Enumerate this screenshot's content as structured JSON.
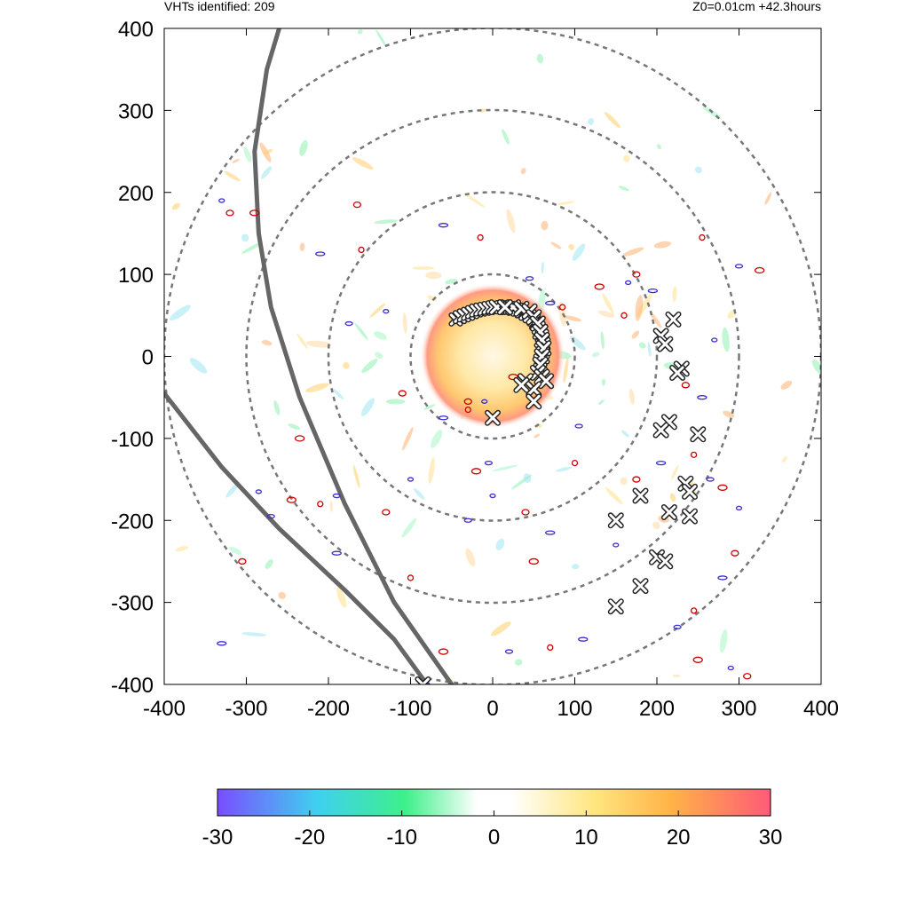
{
  "header": {
    "left": "VHTs identified: 209",
    "right": "Z0=0.01cm  +42.3hours"
  },
  "colors": {
    "ring": "#777777",
    "track": "#666666",
    "contour_pos": "#cc0000",
    "contour_neg": "#3a2fd0",
    "marker_fill": "#ffffff",
    "marker_edge": "#222222"
  },
  "chart_data": {
    "type": "scatter",
    "title": "",
    "xlabel": "",
    "ylabel": "",
    "xlim": [
      -400,
      400
    ],
    "ylim": [
      -400,
      400
    ],
    "xticks": [
      -400,
      -300,
      -200,
      -100,
      0,
      100,
      200,
      300,
      400
    ],
    "yticks": [
      -400,
      -300,
      -200,
      -100,
      0,
      100,
      200,
      300,
      400
    ],
    "grid": false,
    "range_rings": [
      100,
      200,
      300,
      400
    ],
    "vht_count": 209,
    "vht_markers": [
      [
        5,
        60
      ],
      [
        15,
        60
      ],
      [
        25,
        60
      ],
      [
        35,
        58
      ],
      [
        45,
        55
      ],
      [
        50,
        48
      ],
      [
        55,
        40
      ],
      [
        58,
        30
      ],
      [
        60,
        20
      ],
      [
        62,
        10
      ],
      [
        60,
        0
      ],
      [
        58,
        -10
      ],
      [
        55,
        -20
      ],
      [
        60,
        -25
      ],
      [
        65,
        -30
      ],
      [
        50,
        -40
      ],
      [
        40,
        -30
      ],
      [
        35,
        -35
      ],
      [
        50,
        -55
      ],
      [
        0,
        -75
      ],
      [
        15,
        60
      ],
      [
        220,
        45
      ],
      [
        205,
        25
      ],
      [
        210,
        15
      ],
      [
        230,
        -15
      ],
      [
        225,
        -20
      ],
      [
        215,
        -80
      ],
      [
        205,
        -90
      ],
      [
        250,
        -95
      ],
      [
        180,
        -170
      ],
      [
        235,
        -155
      ],
      [
        240,
        -165
      ],
      [
        215,
        -190
      ],
      [
        240,
        -195
      ],
      [
        150,
        -200
      ],
      [
        200,
        -245
      ],
      [
        210,
        -250
      ],
      [
        180,
        -280
      ],
      [
        150,
        -305
      ],
      [
        -85,
        -400
      ]
    ],
    "cluster_core": [
      [
        -45,
        45
      ],
      [
        -40,
        48
      ],
      [
        -35,
        50
      ],
      [
        -30,
        52
      ],
      [
        -25,
        54
      ],
      [
        -20,
        56
      ],
      [
        -15,
        57
      ],
      [
        -10,
        58
      ],
      [
        -5,
        59
      ],
      [
        0,
        60
      ],
      [
        5,
        60
      ],
      [
        10,
        60
      ],
      [
        15,
        60
      ],
      [
        20,
        59
      ],
      [
        25,
        58
      ],
      [
        30,
        57
      ],
      [
        35,
        55
      ],
      [
        40,
        52
      ],
      [
        45,
        49
      ],
      [
        50,
        45
      ],
      [
        53,
        40
      ],
      [
        56,
        35
      ],
      [
        58,
        30
      ],
      [
        60,
        25
      ],
      [
        61,
        20
      ],
      [
        62,
        15
      ],
      [
        62,
        10
      ],
      [
        61,
        5
      ],
      [
        60,
        0
      ],
      [
        58,
        -5
      ]
    ],
    "tracks": [
      [
        [
          -260,
          400
        ],
        [
          -275,
          350
        ],
        [
          -290,
          250
        ],
        [
          -285,
          150
        ],
        [
          -270,
          60
        ],
        [
          -235,
          -50
        ],
        [
          -180,
          -180
        ],
        [
          -120,
          -300
        ],
        [
          -50,
          -400
        ]
      ],
      [
        [
          -400,
          -45
        ],
        [
          -330,
          -135
        ],
        [
          -260,
          -210
        ],
        [
          -180,
          -285
        ],
        [
          -120,
          -345
        ],
        [
          -80,
          -400
        ]
      ]
    ],
    "contours": [
      [
        -130,
        55
      ],
      [
        -110,
        -45
      ],
      [
        -60,
        -75
      ],
      [
        -30,
        -65
      ],
      [
        -190,
        -170
      ],
      [
        -245,
        -175
      ],
      [
        -330,
        190
      ],
      [
        -165,
        185
      ],
      [
        -60,
        160
      ],
      [
        -15,
        145
      ],
      [
        -5,
        -130
      ],
      [
        -20,
        -140
      ],
      [
        -100,
        -150
      ],
      [
        -130,
        -190
      ],
      [
        -190,
        -240
      ],
      [
        -210,
        -180
      ],
      [
        -270,
        -195
      ],
      [
        -290,
        175
      ],
      [
        0,
        -170
      ],
      [
        40,
        -190
      ],
      [
        70,
        -215
      ],
      [
        100,
        -130
      ],
      [
        105,
        -85
      ],
      [
        130,
        85
      ],
      [
        165,
        90
      ],
      [
        175,
        100
      ],
      [
        195,
        80
      ],
      [
        255,
        145
      ],
      [
        300,
        110
      ],
      [
        325,
        105
      ],
      [
        270,
        20
      ],
      [
        235,
        -35
      ],
      [
        255,
        -50
      ],
      [
        245,
        -120
      ],
      [
        265,
        -150
      ],
      [
        280,
        -160
      ],
      [
        300,
        -185
      ],
      [
        295,
        -240
      ],
      [
        280,
        -270
      ],
      [
        245,
        -310
      ],
      [
        225,
        -330
      ],
      [
        250,
        -370
      ],
      [
        290,
        -380
      ],
      [
        310,
        -390
      ],
      [
        110,
        -345
      ],
      [
        70,
        -355
      ],
      [
        20,
        -360
      ],
      [
        -60,
        -360
      ],
      [
        -80,
        -400
      ],
      [
        -320,
        175
      ],
      [
        -210,
        125
      ],
      [
        -160,
        130
      ],
      [
        -175,
        40
      ],
      [
        -235,
        -100
      ],
      [
        -285,
        -165
      ],
      [
        -305,
        -250
      ],
      [
        -330,
        -350
      ],
      [
        -100,
        -270
      ],
      [
        -30,
        -200
      ],
      [
        50,
        -250
      ],
      [
        150,
        -230
      ],
      [
        175,
        -150
      ],
      [
        205,
        -130
      ],
      [
        160,
        50
      ],
      [
        45,
        95
      ],
      [
        25,
        -25
      ],
      [
        -10,
        -55
      ],
      [
        -30,
        -55
      ],
      [
        70,
        65
      ],
      [
        85,
        60
      ]
    ],
    "colorbar": {
      "ticks": [
        -30,
        -20,
        -10,
        0,
        10,
        20,
        30
      ],
      "range": [
        -30,
        30
      ],
      "stops": [
        "#7a4dff",
        "#3fd0f0",
        "#3ef08a",
        "#ffffff",
        "#ffffff",
        "#ffe680",
        "#ffb347",
        "#ff5a78"
      ]
    }
  }
}
